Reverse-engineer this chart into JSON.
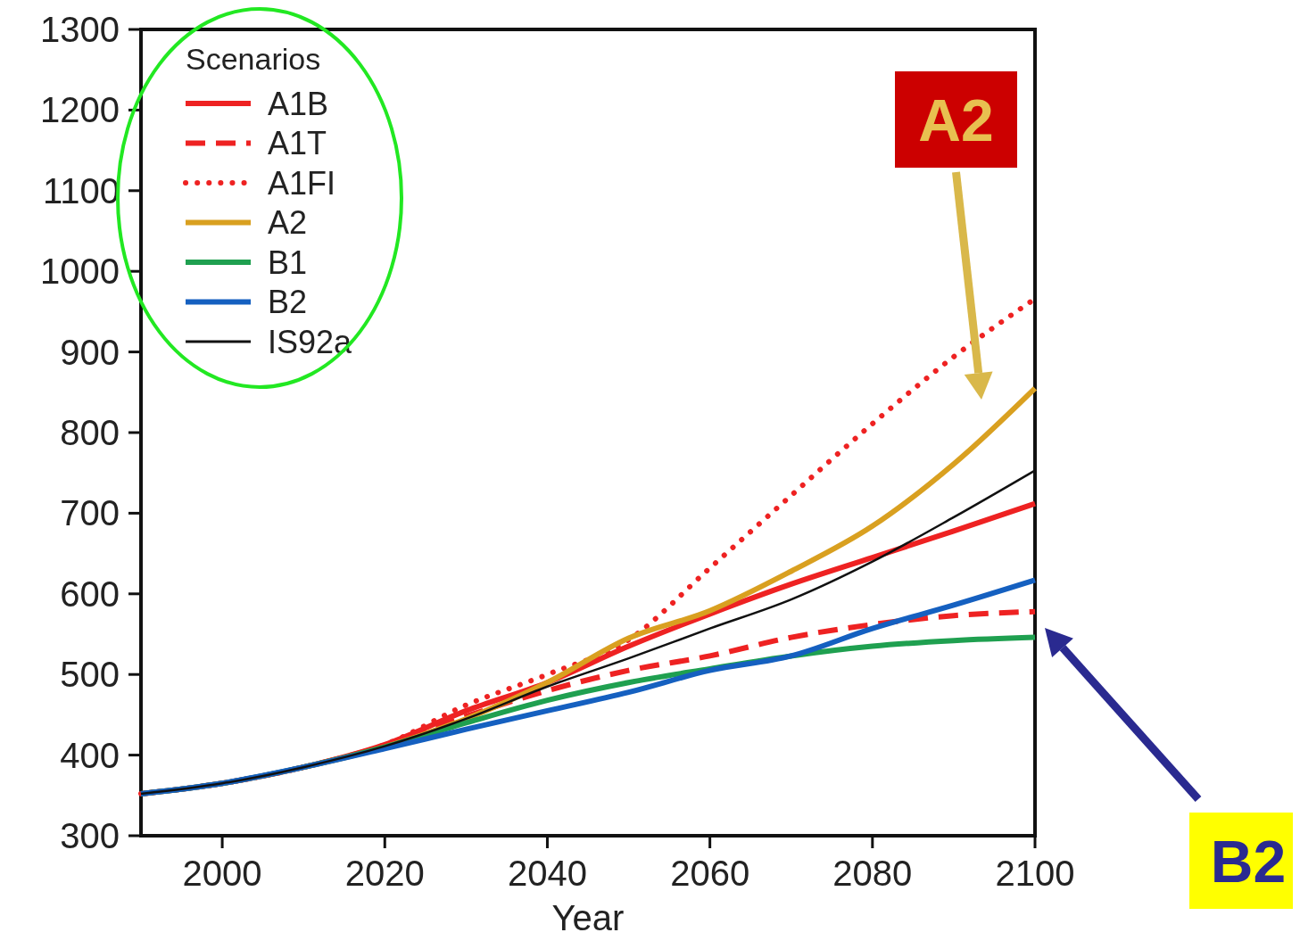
{
  "chart_data": {
    "type": "line",
    "xlabel": "Year",
    "legend_title": "Scenarios",
    "legend": "top left",
    "x": [
      1990,
      2000,
      2010,
      2020,
      2030,
      2040,
      2050,
      2060,
      2070,
      2080,
      2090,
      2100
    ],
    "xlim": [
      1990,
      2100
    ],
    "xticks": [
      2000,
      2020,
      2040,
      2060,
      2080,
      2100
    ],
    "ylim": [
      300,
      1300
    ],
    "yticks": [
      300,
      400,
      500,
      600,
      700,
      800,
      900,
      1000,
      1100,
      1200,
      1300
    ],
    "series": [
      {
        "name": "A1B",
        "color": "#ee2222",
        "line_style": "solid",
        "values": [
          352,
          365,
          385,
          413,
          455,
          490,
          535,
          575,
          612,
          645,
          678,
          712
        ]
      },
      {
        "name": "A1T",
        "color": "#ee2222",
        "line_style": "dashed",
        "values": [
          352,
          365,
          385,
          412,
          448,
          480,
          505,
          523,
          546,
          562,
          573,
          578
        ]
      },
      {
        "name": "A1FI",
        "color": "#ee2222",
        "line_style": "dotted",
        "values": [
          352,
          365,
          385,
          413,
          462,
          500,
          543,
          632,
          722,
          811,
          894,
          966
        ]
      },
      {
        "name": "A2",
        "color": "#d9a020",
        "line_style": "solid",
        "values": [
          null,
          null,
          385,
          410,
          445,
          490,
          545,
          579,
          628,
          684,
          761,
          855
        ]
      },
      {
        "name": "B1",
        "color": "#1fa050",
        "line_style": "solid",
        "values": [
          352,
          365,
          385,
          410,
          440,
          468,
          490,
          507,
          523,
          535,
          542,
          546
        ]
      },
      {
        "name": "B2",
        "color": "#1560c0",
        "line_style": "solid",
        "values": [
          352,
          365,
          385,
          408,
          432,
          455,
          478,
          505,
          523,
          557,
          586,
          617
        ]
      },
      {
        "name": "IS92a",
        "color": "#111111",
        "line_style": "solid",
        "values": [
          352,
          365,
          385,
          411,
          445,
          485,
          520,
          557,
          593,
          640,
          695,
          753
        ]
      }
    ],
    "annotations": [
      "A2",
      "B2"
    ]
  }
}
